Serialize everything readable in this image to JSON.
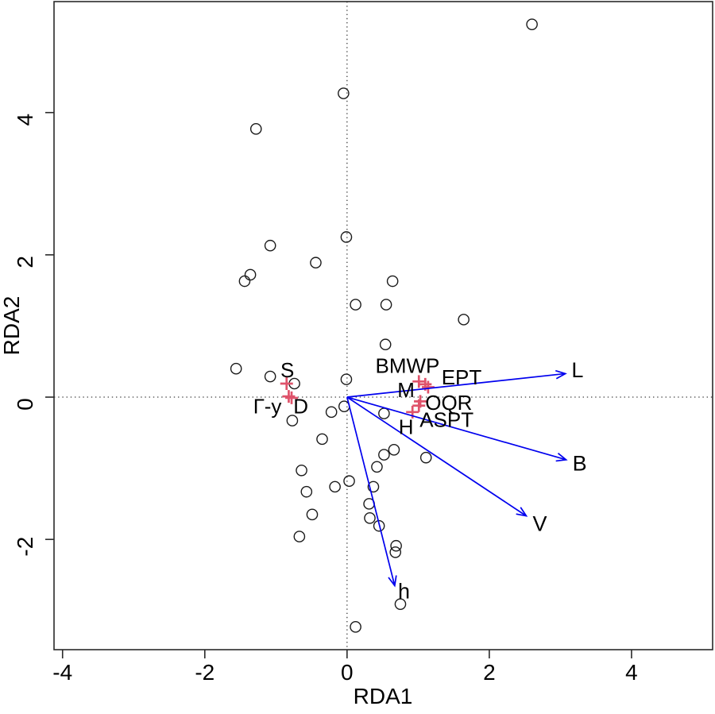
{
  "chart_data": {
    "type": "scatter",
    "subtype": "rda-triplot",
    "title": "",
    "xlabel": "RDA1",
    "ylabel": "RDA2",
    "xlim": [
      -4.12,
      5.14
    ],
    "ylim": [
      -3.55,
      5.56
    ],
    "x_ticks": [
      -4,
      -2,
      0,
      2,
      4
    ],
    "y_ticks": [
      -2,
      0,
      2,
      4
    ],
    "grid": false,
    "legend": "none",
    "reference_lines": {
      "vertical_x": 0,
      "horizontal_y": 0,
      "style": "dotted"
    },
    "colors": {
      "site_marker": "#1a1a1a",
      "species_marker": "#DF536B",
      "arrow": "#0000EE",
      "label_text": "#000000",
      "refline": "#404040",
      "frame": "#2a2a2a"
    },
    "sites": {
      "marker": "open-circle",
      "points": [
        [
          2.6,
          5.24
        ],
        [
          -0.05,
          4.27
        ],
        [
          -1.28,
          3.77
        ],
        [
          -0.01,
          2.25
        ],
        [
          -1.08,
          2.13
        ],
        [
          -0.44,
          1.89
        ],
        [
          -1.36,
          1.72
        ],
        [
          -1.44,
          1.63
        ],
        [
          0.64,
          1.63
        ],
        [
          0.12,
          1.3
        ],
        [
          0.55,
          1.3
        ],
        [
          1.64,
          1.09
        ],
        [
          0.54,
          0.74
        ],
        [
          -1.56,
          0.4
        ],
        [
          -1.08,
          0.29
        ],
        [
          -0.74,
          0.19
        ],
        [
          -0.01,
          0.25
        ],
        [
          -0.22,
          -0.21
        ],
        [
          -0.04,
          -0.13
        ],
        [
          -0.77,
          -0.33
        ],
        [
          -0.35,
          -0.59
        ],
        [
          -0.64,
          -1.03
        ],
        [
          -0.57,
          -1.33
        ],
        [
          -0.17,
          -1.26
        ],
        [
          0.03,
          -1.18
        ],
        [
          -0.49,
          -1.65
        ],
        [
          -0.67,
          -1.96
        ],
        [
          0.12,
          -3.23
        ],
        [
          0.52,
          -0.23
        ],
        [
          0.66,
          -0.74
        ],
        [
          0.52,
          -0.81
        ],
        [
          1.11,
          -0.85
        ],
        [
          0.42,
          -0.98
        ],
        [
          0.37,
          -1.26
        ],
        [
          0.31,
          -1.5
        ],
        [
          0.32,
          -1.7
        ],
        [
          0.45,
          -1.81
        ],
        [
          0.69,
          -2.09
        ],
        [
          0.68,
          -2.18
        ],
        [
          0.75,
          -2.91
        ]
      ]
    },
    "species": {
      "marker": "plus",
      "items": [
        {
          "label": "S",
          "x": -0.85,
          "y": 0.19,
          "label_x": -0.84,
          "label_y": 0.38
        },
        {
          "label": "Г-у",
          "x": -0.82,
          "y": 0.01,
          "label_x": -1.12,
          "label_y": -0.13
        },
        {
          "label": "D",
          "x": -0.78,
          "y": -0.01,
          "label_x": -0.65,
          "label_y": -0.13
        },
        {
          "label": "BMWP",
          "x": 1.01,
          "y": 0.22,
          "label_x": 0.85,
          "label_y": 0.44
        },
        {
          "label": "EPT",
          "x": 1.1,
          "y": 0.18,
          "label_x": 1.61,
          "label_y": 0.28
        },
        {
          "label": "M",
          "x": 1.14,
          "y": 0.14,
          "label_x": 0.83,
          "label_y": 0.1
        },
        {
          "label": "OQR",
          "x": 1.03,
          "y": -0.06,
          "label_x": 1.43,
          "label_y": -0.08
        },
        {
          "label": "ASPT",
          "x": 1.01,
          "y": -0.12,
          "label_x": 1.4,
          "label_y": -0.32
        },
        {
          "label": "H",
          "x": 0.92,
          "y": -0.21,
          "label_x": 0.83,
          "label_y": -0.42
        }
      ]
    },
    "vectors": {
      "origin": [
        0,
        0
      ],
      "items": [
        {
          "label": "L",
          "x": 3.07,
          "y": 0.33,
          "label_x": 3.24,
          "label_y": 0.38
        },
        {
          "label": "B",
          "x": 3.08,
          "y": -0.88,
          "label_x": 3.27,
          "label_y": -0.93
        },
        {
          "label": "V",
          "x": 2.52,
          "y": -1.67,
          "label_x": 2.71,
          "label_y": -1.78
        },
        {
          "label": "h",
          "x": 0.67,
          "y": -2.65,
          "label_x": 0.8,
          "label_y": -2.73
        }
      ]
    }
  }
}
